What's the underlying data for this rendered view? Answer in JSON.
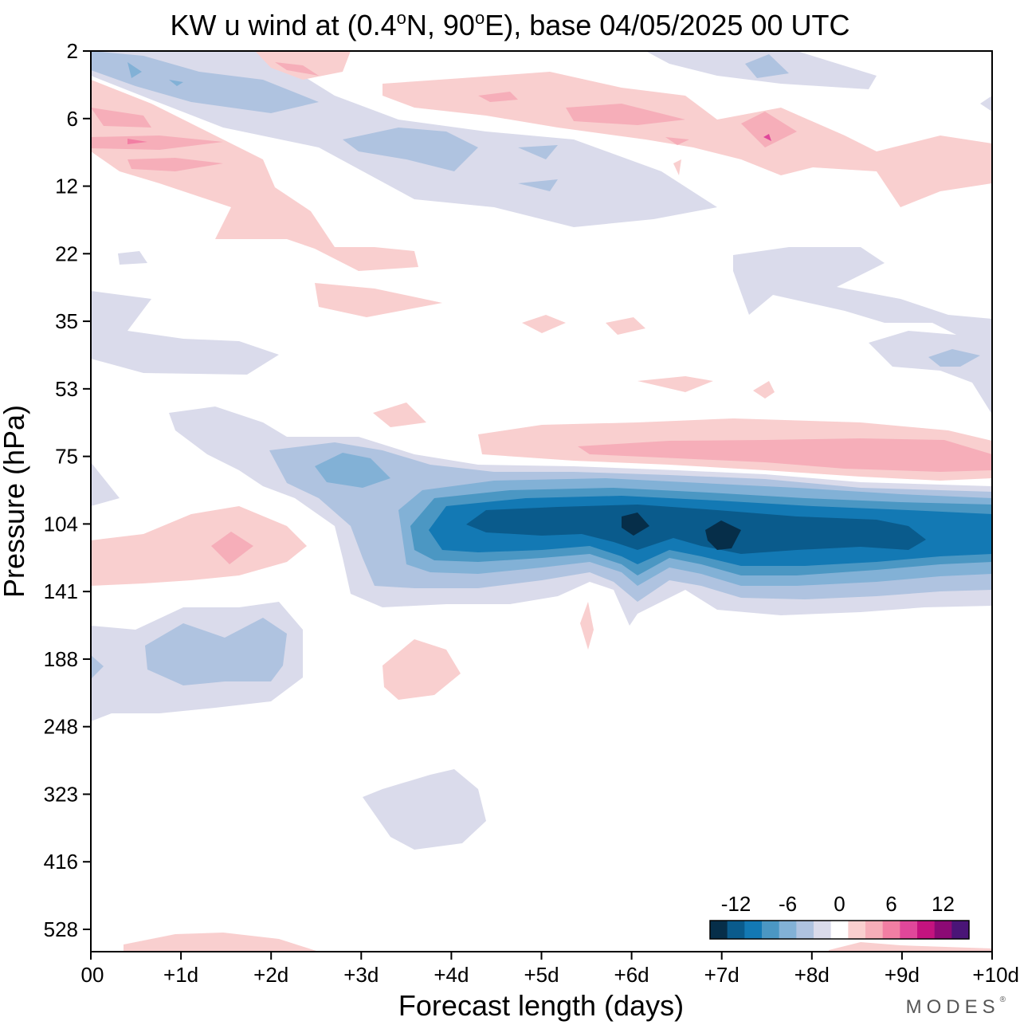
{
  "title": {
    "prefix": "KW u wind at (0.4",
    "deg": "o",
    "mid": "N, 90",
    "deg2": "o",
    "suffix": "E),  base 04/05/2025  00 UTC"
  },
  "brand": {
    "name": "MODES",
    "mark": "®"
  },
  "chart_data": {
    "type": "contour",
    "xlabel": "Forecast length (days)",
    "ylabel": "Pressure (hPa)",
    "x_ticks": [
      "00",
      "+1d",
      "+2d",
      "+3d",
      "+4d",
      "+5d",
      "+6d",
      "+7d",
      "+8d",
      "+9d",
      "+10d"
    ],
    "y_ticks": [
      "2",
      "6",
      "12",
      "22",
      "35",
      "53",
      "75",
      "104",
      "141",
      "188",
      "248",
      "323",
      "416",
      "528"
    ],
    "xlim_days": [
      0,
      10
    ],
    "ylim_hPa": [
      2,
      655
    ],
    "colorbar": {
      "labels": [
        "-12",
        "-6",
        "0",
        "6",
        "12"
      ],
      "levels": [
        -14,
        -12,
        -10,
        -8,
        -6,
        -4,
        -2,
        0,
        2,
        4,
        6,
        8,
        10,
        12,
        14
      ],
      "colors": [
        "#062e49",
        "#0a5b8c",
        "#1379b4",
        "#4b97c3",
        "#82b1d6",
        "#afc3e0",
        "#dadbeb",
        "#ffffff",
        "#f9cfcf",
        "#f6aeb9",
        "#f27ea3",
        "#e0479a",
        "#c4137f",
        "#8c0a75",
        "#4a1577"
      ]
    },
    "features": [
      {
        "name": "lower-stratosphere easterly band",
        "days": [
          2.5,
          10
        ],
        "pressure_hPa": [
          75,
          141
        ],
        "min_value": -14
      },
      {
        "name": "westerly band above",
        "days": [
          5.5,
          10
        ],
        "pressure_hPa": [
          60,
          90
        ],
        "max_value": 6
      },
      {
        "name": "westerly patch",
        "days": [
          0,
          2.5
        ],
        "pressure_hPa": [
          95,
          140
        ],
        "max_value": 4
      },
      {
        "name": "easterly patch",
        "days": [
          0,
          2.5
        ],
        "pressure_hPa": [
          150,
          240
        ],
        "min_value": -4
      },
      {
        "name": "easterly patch",
        "days": [
          3,
          4.5
        ],
        "pressure_hPa": [
          310,
          420
        ],
        "min_value": -2
      },
      {
        "name": "upper-level alternating bands",
        "days": [
          0,
          10
        ],
        "pressure_hPa": [
          2,
          20
        ],
        "range": [
          -6,
          6
        ]
      }
    ]
  }
}
